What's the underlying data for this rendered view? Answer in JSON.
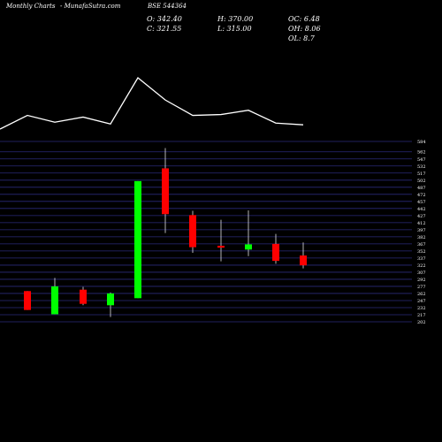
{
  "header": {
    "site": "Monthly Charts",
    "source": "- MunafaSutra.com",
    "symbol": "BSE 544364"
  },
  "stats": {
    "open": "O: 342.40",
    "close": "C: 321.55",
    "high": "H: 370.00",
    "low": "L: 315.00",
    "oc": "OC: 6.48",
    "oh": "OH: 8.06",
    "ol": "OL: 8.7"
  },
  "colors": {
    "up": "#00ff00",
    "down": "#ff0000",
    "grid": "#2a2a7a",
    "line": "#ffffff"
  },
  "chart_data": {
    "type": "candlestick",
    "y_ticks": [
      202,
      217,
      232,
      247,
      262,
      277,
      292,
      307,
      322,
      337,
      352,
      367,
      382,
      397,
      412,
      427,
      442,
      457,
      472,
      487,
      502,
      517,
      532,
      547,
      562,
      584
    ],
    "ylim": [
      202,
      584
    ],
    "candles": [
      {
        "open": 267,
        "close": 227,
        "high": 267,
        "low": 227,
        "dir": "down"
      },
      {
        "open": 218,
        "close": 277,
        "high": 295,
        "low": 218,
        "dir": "up"
      },
      {
        "open": 270,
        "close": 240,
        "high": 276,
        "low": 237,
        "dir": "down"
      },
      {
        "open": 237,
        "close": 262,
        "high": 264,
        "low": 212,
        "dir": "up"
      },
      {
        "open": 252,
        "close": 500,
        "high": 500,
        "low": 252,
        "dir": "up"
      },
      {
        "open": 527,
        "close": 430,
        "high": 570,
        "low": 390,
        "dir": "down"
      },
      {
        "open": 428,
        "close": 360,
        "high": 437,
        "low": 348,
        "dir": "down"
      },
      {
        "open": 363,
        "close": 359,
        "high": 418,
        "low": 330,
        "dir": "down"
      },
      {
        "open": 355,
        "close": 366,
        "high": 438,
        "low": 341,
        "dir": "up"
      },
      {
        "open": 367,
        "close": 331,
        "high": 388,
        "low": 325,
        "dir": "down"
      },
      {
        "open": 342.4,
        "close": 321.55,
        "high": 370,
        "low": 315,
        "dir": "down"
      }
    ],
    "line_points": [
      0,
      16,
      8,
      14,
      6,
      60,
      34,
      16,
      17,
      22,
      7,
      5
    ]
  }
}
